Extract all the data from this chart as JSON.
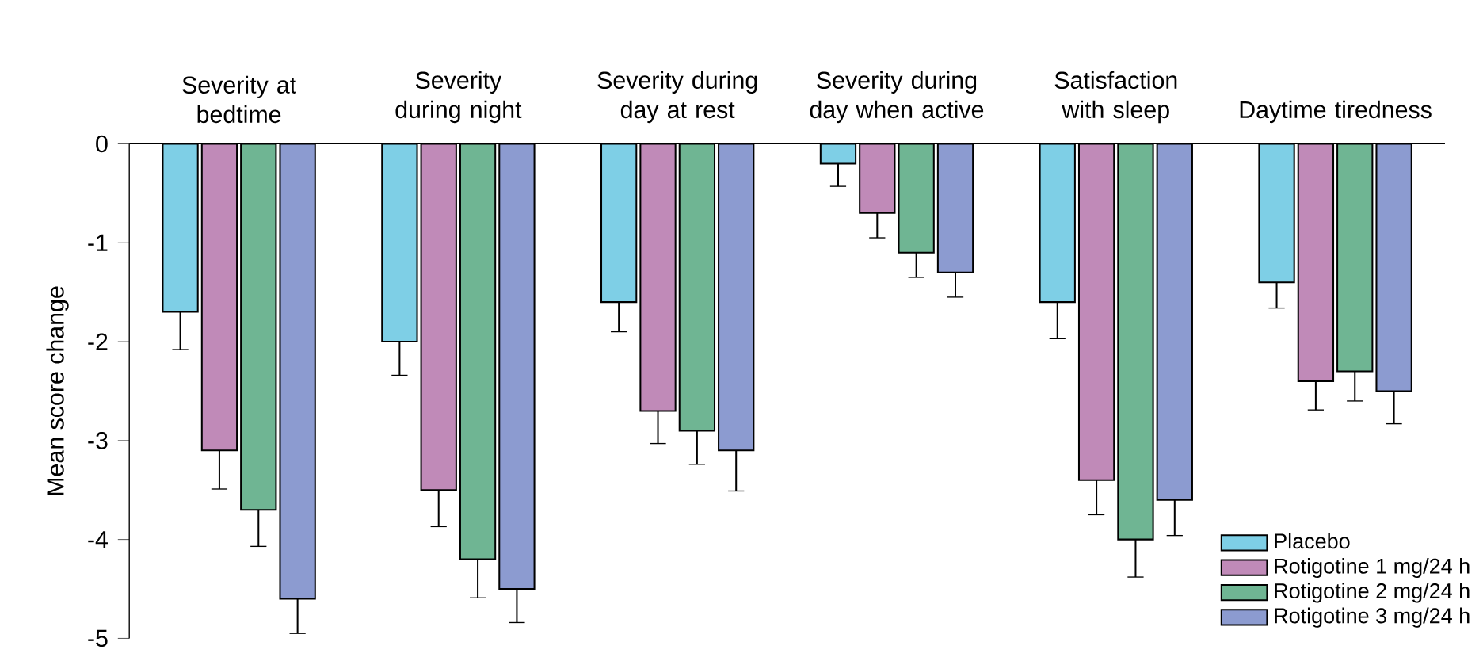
{
  "chart_data": {
    "type": "bar",
    "ylabel": "Mean score change",
    "categories": [
      "Severity at bedtime",
      "Severity during night",
      "Severity during day at rest",
      "Severity during day when active",
      "Satisfaction with sleep",
      "Daytime tiredness"
    ],
    "ylim": [
      -5,
      0
    ],
    "yticks": [
      -5,
      -4,
      -3,
      -2,
      -1,
      0
    ],
    "legend": "bottom right",
    "grid": false,
    "series": [
      {
        "name": "Placebo",
        "color": "#7ecfe6",
        "values": [
          -1.7,
          -2.0,
          -1.6,
          -0.2,
          -1.6,
          -1.4
        ],
        "errors": [
          [
            -2.08,
            -1.7
          ],
          [
            -2.34,
            -2.0
          ],
          [
            -1.9,
            -1.6
          ],
          [
            -0.43,
            -0.2
          ],
          [
            -1.97,
            -1.6
          ],
          [
            -1.66,
            -1.4
          ]
        ]
      },
      {
        "name": "Rotigotine 1 mg/24 h",
        "color": "#c08ab8",
        "values": [
          -3.1,
          -3.5,
          -2.7,
          -0.7,
          -3.4,
          -2.4
        ],
        "errors": [
          [
            -3.49,
            -3.1
          ],
          [
            -3.87,
            -3.5
          ],
          [
            -3.03,
            -2.7
          ],
          [
            -0.95,
            -0.7
          ],
          [
            -3.75,
            -3.4
          ],
          [
            -2.69,
            -2.4
          ]
        ]
      },
      {
        "name": "Rotigotine 2 mg/24 h",
        "color": "#6fb593",
        "values": [
          -3.7,
          -4.2,
          -2.9,
          -1.1,
          -4.0,
          -2.3
        ],
        "errors": [
          [
            -4.07,
            -3.7
          ],
          [
            -4.59,
            -4.2
          ],
          [
            -3.24,
            -2.9
          ],
          [
            -1.35,
            -1.1
          ],
          [
            -4.38,
            -4.0
          ],
          [
            -2.6,
            -2.3
          ]
        ]
      },
      {
        "name": "Rotigotine 3 mg/24 h",
        "color": "#8c9bd0",
        "values": [
          -4.6,
          -4.5,
          -3.1,
          -1.3,
          -3.6,
          -2.5
        ],
        "errors": [
          [
            -4.95,
            -4.6
          ],
          [
            -4.84,
            -4.5
          ],
          [
            -3.51,
            -3.1
          ],
          [
            -1.55,
            -1.3
          ],
          [
            -3.96,
            -3.6
          ],
          [
            -2.83,
            -2.5
          ]
        ]
      }
    ]
  }
}
